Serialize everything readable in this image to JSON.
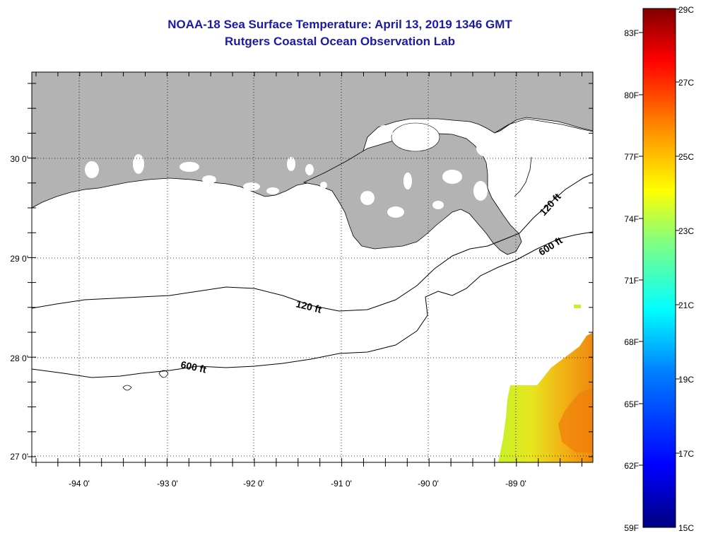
{
  "header": {
    "title": "NOAA-18 Sea Surface Temperature:  April 13, 2019 1346 GMT",
    "subtitle": "Rutgers Coastal Ocean Observation Lab"
  },
  "map": {
    "longitude_labels": [
      "-94 0'",
      "-93 0'",
      "-92 0'",
      "-91 0'",
      "-90 0'",
      "-89 0'"
    ],
    "latitude_labels": [
      "30 0'",
      "29 0'",
      "28 0'",
      "27 0'"
    ],
    "contour_labels": [
      "120 ft",
      "120 ft",
      "600 ft",
      "600 ft"
    ],
    "land_color": "#b3b3b3",
    "water_color": "#ffffff"
  },
  "colorbar": {
    "fahrenheit_labels": [
      "83F",
      "80F",
      "77F",
      "74F",
      "71F",
      "68F",
      "65F",
      "62F",
      "59F"
    ],
    "celsius_labels": [
      "29C",
      "27C",
      "25C",
      "23C",
      "21C",
      "19C",
      "17C",
      "15C"
    ]
  }
}
